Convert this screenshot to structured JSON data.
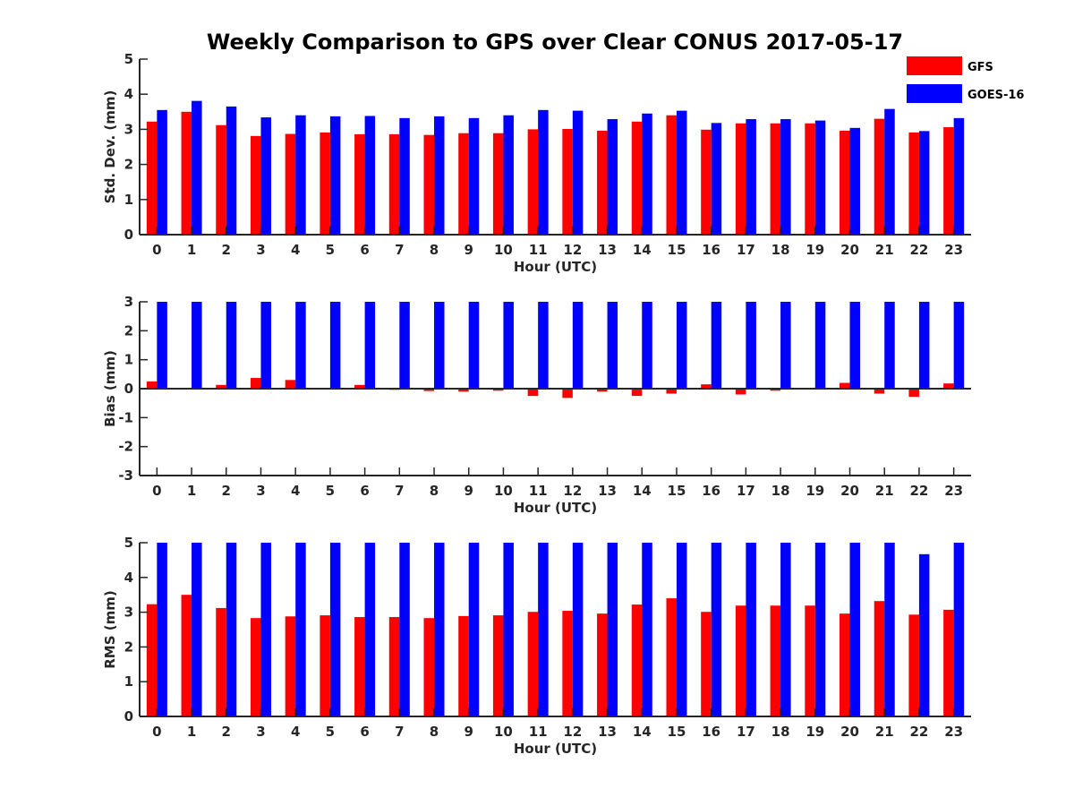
{
  "chart_data": {
    "type": "bar",
    "title": "Weekly Comparison to GPS over Clear CONUS 2017-05-17",
    "legend": {
      "placement": "top-right",
      "entries": [
        {
          "name": "GFS",
          "color": "#ff0000"
        },
        {
          "name": "GOES-16",
          "color": "#0000ff"
        }
      ]
    },
    "categories": [
      "0",
      "1",
      "2",
      "3",
      "4",
      "5",
      "6",
      "7",
      "8",
      "9",
      "10",
      "11",
      "12",
      "13",
      "14",
      "15",
      "16",
      "17",
      "18",
      "19",
      "20",
      "21",
      "22",
      "23"
    ],
    "panels": [
      {
        "ylabel": "Std. Dev. (mm)",
        "xlabel": "Hour (UTC)",
        "ylim": [
          0,
          5
        ],
        "yticks": [
          0,
          1,
          2,
          3,
          4,
          5
        ],
        "series": [
          {
            "name": "GFS",
            "color": "#ff0000",
            "values": [
              3.22,
              3.5,
              3.12,
              2.81,
              2.87,
              2.91,
              2.86,
              2.86,
              2.84,
              2.89,
              2.89,
              3.0,
              3.01,
              2.96,
              3.22,
              3.4,
              2.99,
              3.17,
              3.17,
              3.17,
              2.96,
              3.3,
              2.91,
              3.06
            ]
          },
          {
            "name": "GOES-16",
            "color": "#0000ff",
            "values": [
              3.55,
              3.81,
              3.65,
              3.34,
              3.4,
              3.37,
              3.38,
              3.32,
              3.37,
              3.32,
              3.4,
              3.55,
              3.53,
              3.29,
              3.45,
              3.53,
              3.18,
              3.29,
              3.29,
              3.25,
              3.04,
              3.58,
              2.95,
              3.32
            ]
          }
        ]
      },
      {
        "ylabel": "Bias (mm)",
        "xlabel": "Hour (UTC)",
        "ylim": [
          -3,
          3
        ],
        "yticks": [
          -3,
          -2,
          -1,
          0,
          1,
          2,
          3
        ],
        "series": [
          {
            "name": "GFS",
            "color": "#ff0000",
            "values": [
              0.25,
              0.0,
              0.13,
              0.37,
              0.3,
              0.03,
              0.13,
              -0.04,
              -0.08,
              -0.1,
              -0.07,
              -0.25,
              -0.32,
              -0.1,
              -0.25,
              -0.17,
              0.15,
              -0.2,
              -0.07,
              0.0,
              0.2,
              -0.17,
              -0.28,
              0.18
            ]
          },
          {
            "name": "GOES-16",
            "color": "#0000ff",
            "values": [
              3,
              3,
              3,
              3,
              3,
              3,
              3,
              3,
              3,
              3,
              3,
              3,
              3,
              3,
              3,
              3,
              3,
              3,
              3,
              3,
              3,
              3,
              3,
              3
            ]
          }
        ]
      },
      {
        "ylabel": "RMS (mm)",
        "xlabel": "Hour (UTC)",
        "ylim": [
          0,
          5
        ],
        "yticks": [
          0,
          1,
          2,
          3,
          4,
          5
        ],
        "series": [
          {
            "name": "GFS",
            "color": "#ff0000",
            "values": [
              3.23,
              3.5,
              3.12,
              2.83,
              2.88,
              2.91,
              2.86,
              2.86,
              2.83,
              2.89,
              2.91,
              3.01,
              3.04,
              2.96,
              3.22,
              3.4,
              3.01,
              3.19,
              3.19,
              3.19,
              2.96,
              3.32,
              2.93,
              3.07
            ]
          },
          {
            "name": "GOES-16",
            "color": "#0000ff",
            "values": [
              5,
              5,
              5,
              5,
              5,
              5,
              5,
              5,
              5,
              5,
              5,
              5,
              5,
              5,
              5,
              5,
              5,
              5,
              5,
              5,
              5,
              5,
              4.67,
              5
            ]
          }
        ]
      }
    ]
  }
}
